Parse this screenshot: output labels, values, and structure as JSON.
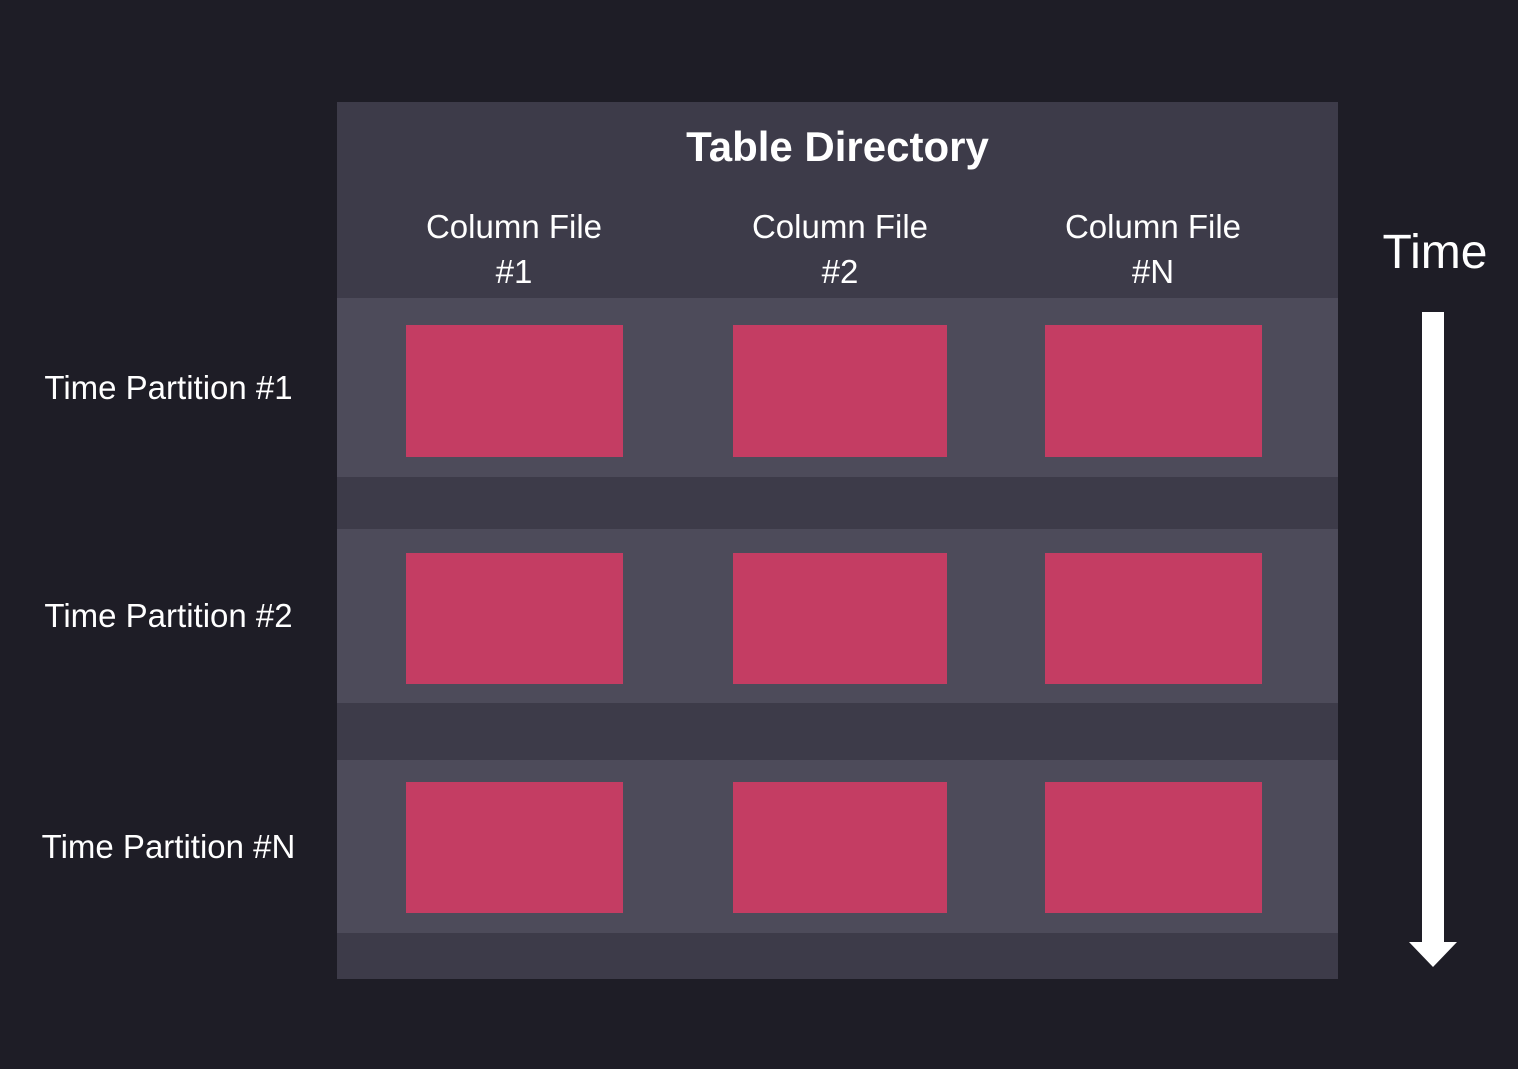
{
  "diagram": {
    "title": "Table Directory",
    "columns": [
      {
        "line1": "Column File",
        "line2": "#1"
      },
      {
        "line1": "Column File",
        "line2": "#2"
      },
      {
        "line1": "Column File",
        "line2": "#N"
      }
    ],
    "rows": [
      {
        "label": "Time Partition #1"
      },
      {
        "label": "Time Partition #2"
      },
      {
        "label": "Time Partition #N"
      }
    ],
    "grid": {
      "row_count": 3,
      "column_count": 3
    },
    "time_axis": {
      "label": "Time",
      "direction": "down"
    }
  },
  "colors": {
    "background": "#1e1d26",
    "table_header_bg": "#3d3b49",
    "partition_row_bg": "#4d4b5a",
    "column_file_block": "#c43d63",
    "text": "#ffffff",
    "arrow": "#ffffff"
  }
}
